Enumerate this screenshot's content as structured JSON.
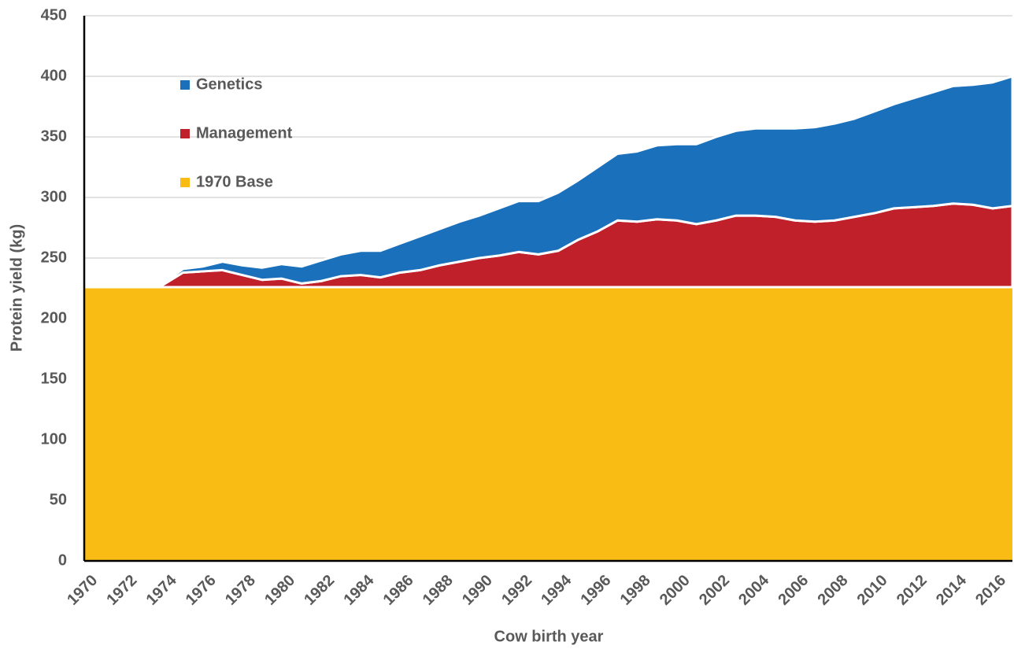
{
  "chart_data": {
    "type": "stacked_area",
    "xlabel": "Cow birth year",
    "ylabel": "Protein yield (kg)",
    "categories": [
      1970,
      null,
      1972,
      null,
      1974,
      null,
      1976,
      null,
      1978,
      null,
      1980,
      null,
      1982,
      null,
      1984,
      null,
      1986,
      null,
      1988,
      null,
      1990,
      null,
      1992,
      null,
      1994,
      null,
      1996,
      null,
      1998,
      null,
      2000,
      null,
      2002,
      null,
      2004,
      null,
      2006,
      null,
      2008,
      null,
      2010,
      null,
      2012,
      null,
      2014,
      null,
      2016,
      null
    ],
    "series": [
      {
        "name": "1970 Base",
        "color": "#f9bc15",
        "values": [
          226,
          226,
          226,
          226,
          226,
          226,
          226,
          226,
          226,
          226,
          226,
          226,
          226,
          226,
          226,
          226,
          226,
          226,
          226,
          226,
          226,
          226,
          226,
          226,
          226,
          226,
          226,
          226,
          226,
          226,
          226,
          226,
          226,
          226,
          226,
          226,
          226,
          226,
          226,
          226,
          226,
          226,
          226,
          226,
          226,
          226,
          226,
          226
        ]
      },
      {
        "name": "Management",
        "color": "#c0202a",
        "values": [
          0,
          0,
          0,
          0,
          2,
          12,
          13,
          14,
          10,
          6,
          7,
          3,
          5,
          9,
          10,
          8,
          12,
          14,
          18,
          21,
          24,
          26,
          29,
          27,
          30,
          39,
          46,
          55,
          54,
          56,
          55,
          52,
          55,
          59,
          59,
          58,
          55,
          54,
          55,
          58,
          61,
          65,
          66,
          67,
          69,
          68,
          65,
          67
        ]
      },
      {
        "name": "Genetics",
        "color": "#1a70bb",
        "values": [
          0,
          0,
          0,
          0,
          1,
          3,
          4,
          7,
          8,
          10,
          12,
          14,
          17,
          18,
          20,
          22,
          24,
          28,
          30,
          33,
          35,
          39,
          42,
          44,
          48,
          49,
          53,
          55,
          58,
          61,
          63,
          66,
          69,
          70,
          72,
          73,
          76,
          78,
          80,
          81,
          84,
          86,
          90,
          94,
          97,
          99,
          104,
          107
        ]
      }
    ],
    "ylim": [
      0,
      450
    ],
    "yticks": [
      0,
      50,
      100,
      150,
      200,
      250,
      300,
      350,
      400,
      450
    ],
    "grid": true,
    "legend": "top-left"
  }
}
